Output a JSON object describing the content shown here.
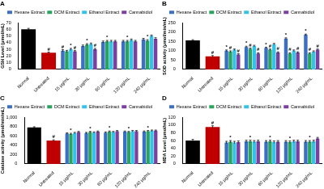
{
  "chart_data": [
    {
      "type": "bar",
      "label": "A",
      "y_label": "GSH Level (μmol/mL)",
      "categories": [
        "Normal",
        "Untreated",
        "15 μg/mL",
        "30 μg/mL",
        "60 μg/mL",
        "120 μg/mL",
        "240 μg/mL"
      ],
      "series": [
        {
          "name": "Hexane Extract",
          "color": "#3a6fc4",
          "colors": [
            "#000000",
            "#c00000",
            "#3a6fc4",
            "#3a6fc4",
            "#3a6fc4",
            "#3a6fc4",
            "#3a6fc4"
          ],
          "values": [
            60,
            25,
            28,
            35,
            41,
            42,
            45
          ],
          "errors": [
            1.5,
            1,
            1.5,
            1.5,
            1.5,
            1.5,
            1.5
          ],
          "annotations": [
            null,
            "#",
            "#",
            null,
            null,
            null,
            null
          ]
        },
        {
          "name": "DCM Extract",
          "color": "#2ca25f",
          "values": [
            null,
            null,
            27,
            37,
            42,
            42,
            43
          ],
          "errors": [
            null,
            null,
            1.5,
            1.5,
            1.5,
            1.5,
            1.5
          ],
          "annotations": [
            null,
            null,
            null,
            "*",
            "*",
            "*",
            "*"
          ]
        },
        {
          "name": "Ethanol Extract",
          "color": "#33c3e8",
          "values": [
            null,
            null,
            30,
            38,
            42,
            44,
            50
          ],
          "errors": [
            null,
            null,
            1.5,
            1.5,
            1.5,
            1.5,
            1.5
          ],
          "annotations": [
            null,
            null,
            "*",
            null,
            null,
            null,
            null
          ]
        },
        {
          "name": "Cannabidiol",
          "color": "#7b3fa0",
          "values": [
            null,
            null,
            27,
            30,
            42,
            42,
            46
          ],
          "errors": [
            null,
            null,
            1.5,
            1.5,
            1.5,
            1.5,
            1.5
          ],
          "annotations": [
            null,
            null,
            "#",
            "#",
            null,
            null,
            null
          ]
        }
      ],
      "ylim": [
        0,
        70
      ],
      "yticks": [
        0,
        10,
        20,
        30,
        40,
        50,
        60,
        70
      ],
      "grid": false,
      "legend": "top"
    },
    {
      "type": "bar",
      "label": "B",
      "y_label": "SOD activity (μmol/min/mL)",
      "categories": [
        "Normal",
        "Untreated",
        "15 μg/mL",
        "30 μg/mL",
        "60 μg/mL",
        "120 μg/mL",
        "240 μg/mL"
      ],
      "series": [
        {
          "name": "Hexane Extract",
          "color": "#3a6fc4",
          "colors": [
            "#000000",
            "#c00000",
            "#3a6fc4",
            "#3a6fc4",
            "#3a6fc4",
            "#3a6fc4",
            "#3a6fc4"
          ],
          "values": [
            155,
            70,
            100,
            120,
            115,
            165,
            185
          ],
          "errors": [
            4,
            4,
            4,
            4,
            4,
            4,
            4
          ],
          "annotations": [
            null,
            "#",
            "*",
            "*",
            "*",
            "*",
            "*"
          ]
        },
        {
          "name": "DCM Extract",
          "color": "#2ca25f",
          "values": [
            null,
            null,
            95,
            110,
            105,
            85,
            85
          ],
          "errors": [
            null,
            null,
            4,
            4,
            4,
            4,
            4
          ],
          "annotations": [
            null,
            null,
            "#",
            "#",
            "#",
            "#",
            "#"
          ]
        },
        {
          "name": "Ethanol Extract",
          "color": "#33c3e8",
          "values": [
            null,
            null,
            105,
            125,
            135,
            100,
            95
          ],
          "errors": [
            null,
            null,
            4,
            4,
            4,
            4,
            4
          ]
        },
        {
          "name": "Cannabidiol",
          "color": "#7b3fa0",
          "values": [
            null,
            null,
            80,
            85,
            90,
            90,
            105
          ],
          "errors": [
            null,
            null,
            4,
            4,
            4,
            4,
            4
          ],
          "annotations": [
            null,
            null,
            "#",
            "#",
            "#",
            "#",
            "#"
          ]
        }
      ],
      "ylim": [
        0,
        250
      ],
      "yticks": [
        0,
        50,
        100,
        150,
        200,
        250
      ],
      "grid": false,
      "legend": "top"
    },
    {
      "type": "bar",
      "label": "C",
      "y_label": "Catalase activity (μmol/min/mL)",
      "categories": [
        "Normal",
        "Untreated",
        "15 μg/mL",
        "30 μg/mL",
        "60 μg/mL",
        "120 μg/mL",
        "240 μg/mL"
      ],
      "series": [
        {
          "name": "Hexane Extract",
          "color": "#3a6fc4",
          "colors": [
            "#000000",
            "#c00000",
            "#3a6fc4",
            "#3a6fc4",
            "#3a6fc4",
            "#3a6fc4",
            "#3a6fc4"
          ],
          "values": [
            780,
            500,
            650,
            660,
            670,
            690,
            690
          ],
          "errors": [
            15,
            15,
            15,
            15,
            15,
            15,
            15
          ],
          "annotations": [
            null,
            "#",
            null,
            null,
            null,
            null,
            null
          ]
        },
        {
          "name": "DCM Extract",
          "color": "#2ca25f",
          "values": [
            null,
            null,
            640,
            680,
            690,
            680,
            700
          ],
          "errors": [
            null,
            null,
            15,
            15,
            15,
            15,
            15
          ],
          "annotations": [
            null,
            null,
            "*",
            "*",
            "*",
            "*",
            "*"
          ]
        },
        {
          "name": "Ethanol Extract",
          "color": "#33c3e8",
          "values": [
            null,
            null,
            660,
            670,
            680,
            700,
            710
          ],
          "errors": [
            null,
            null,
            15,
            15,
            15,
            15,
            15
          ]
        },
        {
          "name": "Cannabidiol",
          "color": "#7b3fa0",
          "values": [
            null,
            null,
            680,
            690,
            700,
            700,
            710
          ],
          "errors": [
            null,
            null,
            15,
            15,
            15,
            15,
            15
          ]
        }
      ],
      "ylim": [
        0,
        1000
      ],
      "yticks": [
        0,
        200,
        400,
        600,
        800,
        1000
      ],
      "grid": false,
      "legend": "top"
    },
    {
      "type": "bar",
      "label": "D",
      "y_label": "MDA Level (μmol/mL)",
      "categories": [
        "Normal",
        "Untreated",
        "15 μg/mL",
        "30 μg/mL",
        "60 μg/mL",
        "120 μg/mL",
        "240 μg/mL"
      ],
      "series": [
        {
          "name": "Hexane Extract",
          "color": "#3a6fc4",
          "colors": [
            "#000000",
            "#c00000",
            "#3a6fc4",
            "#3a6fc4",
            "#3a6fc4",
            "#3a6fc4",
            "#3a6fc4"
          ],
          "values": [
            60,
            95,
            55,
            58,
            57,
            57,
            57
          ],
          "errors": [
            3,
            3,
            3,
            3,
            3,
            3,
            3
          ],
          "annotations": [
            null,
            "#",
            null,
            null,
            null,
            null,
            null
          ]
        },
        {
          "name": "DCM Extract",
          "color": "#2ca25f",
          "values": [
            null,
            null,
            57,
            58,
            58,
            56,
            57
          ],
          "errors": [
            null,
            null,
            3,
            3,
            3,
            3,
            3
          ],
          "annotations": [
            null,
            null,
            "*",
            "*",
            "*",
            "*",
            "*"
          ]
        },
        {
          "name": "Ethanol Extract",
          "color": "#33c3e8",
          "values": [
            null,
            null,
            55,
            57,
            56,
            58,
            58
          ],
          "errors": [
            null,
            null,
            3,
            3,
            3,
            3,
            3
          ]
        },
        {
          "name": "Cannabidiol",
          "color": "#7b3fa0",
          "values": [
            null,
            null,
            56,
            58,
            57,
            58,
            65
          ],
          "errors": [
            null,
            null,
            3,
            3,
            3,
            3,
            3
          ]
        }
      ],
      "ylim": [
        0,
        120
      ],
      "yticks": [
        0,
        20,
        40,
        60,
        80,
        100,
        120
      ],
      "grid": false,
      "legend": "top"
    }
  ]
}
